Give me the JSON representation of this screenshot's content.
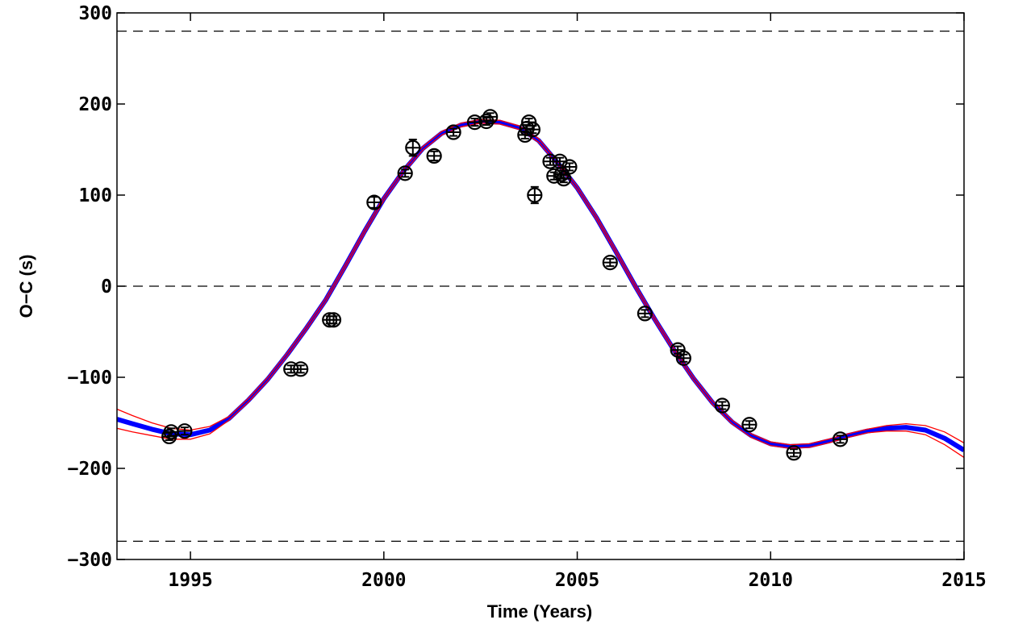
{
  "chart_data": {
    "type": "scatter",
    "title": "",
    "xlabel": "Time (Years)",
    "ylabel": "O−C (s)",
    "xlim": [
      1993.1,
      2015
    ],
    "ylim": [
      -300,
      300
    ],
    "xticks": [
      1995,
      2000,
      2005,
      2010,
      2015
    ],
    "yticks": [
      -300,
      -200,
      -100,
      0,
      100,
      200,
      300
    ],
    "xtick_labels": [
      "1995",
      "2000",
      "2005",
      "2010",
      "2015"
    ],
    "ytick_labels": [
      "−300",
      "−200",
      "−100",
      "0",
      "100",
      "200",
      "300"
    ],
    "reference_lines": [
      280,
      0,
      -280
    ],
    "grid": false,
    "colors": {
      "points": "#000000",
      "model": "#0000ff",
      "envelope": "#ff0000",
      "reference": "#000000"
    },
    "observations": [
      {
        "x": 1994.45,
        "y": -165,
        "err": 4
      },
      {
        "x": 1994.5,
        "y": -160,
        "err": 4
      },
      {
        "x": 1994.85,
        "y": -159,
        "err": 4
      },
      {
        "x": 1997.6,
        "y": -91,
        "err": 4
      },
      {
        "x": 1997.85,
        "y": -91,
        "err": 4
      },
      {
        "x": 1998.6,
        "y": -37,
        "err": 4
      },
      {
        "x": 1998.7,
        "y": -37,
        "err": 4
      },
      {
        "x": 1999.75,
        "y": 92,
        "err": 6
      },
      {
        "x": 2000.55,
        "y": 124,
        "err": 4
      },
      {
        "x": 2000.75,
        "y": 152,
        "err": 9
      },
      {
        "x": 2001.3,
        "y": 143,
        "err": 5
      },
      {
        "x": 2001.8,
        "y": 169,
        "err": 4
      },
      {
        "x": 2002.35,
        "y": 180,
        "err": 4
      },
      {
        "x": 2002.65,
        "y": 181,
        "err": 4
      },
      {
        "x": 2002.75,
        "y": 186,
        "err": 4
      },
      {
        "x": 2003.65,
        "y": 166,
        "err": 4
      },
      {
        "x": 2003.7,
        "y": 173,
        "err": 4
      },
      {
        "x": 2003.75,
        "y": 180,
        "err": 4
      },
      {
        "x": 2003.85,
        "y": 172,
        "err": 4
      },
      {
        "x": 2003.9,
        "y": 100,
        "err": 9
      },
      {
        "x": 2004.3,
        "y": 137,
        "err": 4
      },
      {
        "x": 2004.4,
        "y": 121,
        "err": 4
      },
      {
        "x": 2004.55,
        "y": 137,
        "err": 4
      },
      {
        "x": 2004.6,
        "y": 123,
        "err": 4
      },
      {
        "x": 2004.65,
        "y": 118,
        "err": 4
      },
      {
        "x": 2004.8,
        "y": 131,
        "err": 4
      },
      {
        "x": 2005.85,
        "y": 26,
        "err": 4
      },
      {
        "x": 2006.75,
        "y": -30,
        "err": 4
      },
      {
        "x": 2007.6,
        "y": -70,
        "err": 4
      },
      {
        "x": 2007.75,
        "y": -79,
        "err": 4
      },
      {
        "x": 2008.75,
        "y": -131,
        "err": 4
      },
      {
        "x": 2009.45,
        "y": -152,
        "err": 4
      },
      {
        "x": 2010.6,
        "y": -183,
        "err": 4
      },
      {
        "x": 2011.8,
        "y": -168,
        "err": 4
      }
    ],
    "model_curve": {
      "x": [
        1993.1,
        1993.5,
        1994,
        1994.5,
        1995,
        1995.5,
        1996,
        1996.5,
        1997,
        1997.5,
        1998,
        1998.5,
        1999,
        1999.5,
        2000,
        2000.5,
        2001,
        2001.5,
        2002,
        2002.5,
        2003,
        2003.5,
        2004,
        2004.5,
        2005,
        2005.5,
        2006,
        2006.5,
        2007,
        2007.5,
        2008,
        2008.5,
        2009,
        2009.5,
        2010,
        2010.5,
        2011,
        2011.5,
        2012,
        2012.5,
        2013,
        2013.5,
        2014,
        2014.5,
        2015
      ],
      "y": [
        -146,
        -151,
        -157,
        -162,
        -163,
        -158,
        -145,
        -125,
        -102,
        -75,
        -46,
        -15,
        22,
        60,
        96,
        126,
        151,
        168,
        177,
        181,
        180,
        174,
        160,
        135,
        108,
        75,
        38,
        0,
        -36,
        -70,
        -101,
        -128,
        -149,
        -164,
        -173,
        -176,
        -175,
        -170,
        -164,
        -159,
        -156,
        -155,
        -158,
        -167,
        -180
      ]
    },
    "envelope_upper": {
      "x": [
        1993.1,
        1993.5,
        1994,
        1994.5,
        1995,
        1995.5,
        1996,
        1996.5,
        1997,
        1997.5,
        1998,
        1998.5,
        1999,
        1999.5,
        2000,
        2000.5,
        2001,
        2001.5,
        2002,
        2002.5,
        2003,
        2003.5,
        2004,
        2004.5,
        2005,
        2005.5,
        2006,
        2006.5,
        2007,
        2007.5,
        2008,
        2008.5,
        2009,
        2009.5,
        2010,
        2010.5,
        2011,
        2011.5,
        2012,
        2012.5,
        2013,
        2013.5,
        2014,
        2014.5,
        2015
      ],
      "y": [
        -135,
        -142,
        -150,
        -156,
        -158,
        -154,
        -143,
        -123,
        -100,
        -73,
        -44,
        -13,
        24,
        62,
        98,
        128,
        153,
        170,
        179,
        183,
        182,
        176,
        162,
        137,
        110,
        77,
        40,
        2,
        -34,
        -68,
        -99,
        -126,
        -147,
        -162,
        -171,
        -174,
        -173,
        -168,
        -162,
        -157,
        -153,
        -151,
        -153,
        -160,
        -172
      ]
    },
    "envelope_lower": {
      "x": [
        1993.1,
        1993.5,
        1994,
        1994.5,
        1995,
        1995.5,
        1996,
        1996.5,
        1997,
        1997.5,
        1998,
        1998.5,
        1999,
        1999.5,
        2000,
        2000.5,
        2001,
        2001.5,
        2002,
        2002.5,
        2003,
        2003.5,
        2004,
        2004.5,
        2005,
        2005.5,
        2006,
        2006.5,
        2007,
        2007.5,
        2008,
        2008.5,
        2009,
        2009.5,
        2010,
        2010.5,
        2011,
        2011.5,
        2012,
        2012.5,
        2013,
        2013.5,
        2014,
        2014.5,
        2015
      ],
      "y": [
        -156,
        -160,
        -164,
        -168,
        -168,
        -162,
        -147,
        -127,
        -104,
        -77,
        -48,
        -17,
        20,
        58,
        94,
        124,
        149,
        166,
        175,
        179,
        178,
        172,
        158,
        133,
        106,
        73,
        36,
        -2,
        -38,
        -72,
        -103,
        -130,
        -151,
        -166,
        -175,
        -178,
        -177,
        -172,
        -166,
        -161,
        -159,
        -159,
        -163,
        -174,
        -188
      ]
    }
  }
}
